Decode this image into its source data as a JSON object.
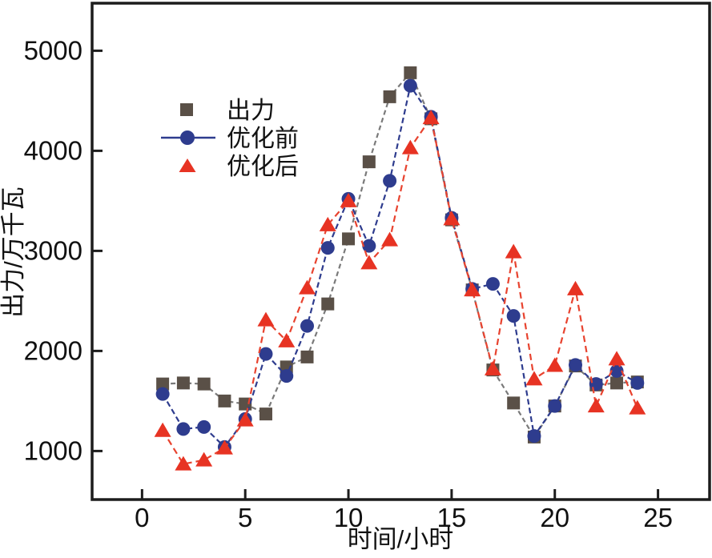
{
  "figure": {
    "background": "#ffffff",
    "frame_color": "#1c1c1c"
  },
  "chart_data": {
    "type": "line",
    "title": "",
    "xlabel": "时间/小时",
    "ylabel": "出力/万千瓦",
    "x": [
      1,
      2,
      3,
      4,
      5,
      6,
      7,
      8,
      9,
      10,
      11,
      12,
      13,
      14,
      15,
      16,
      17,
      18,
      19,
      20,
      21,
      22,
      23,
      24
    ],
    "xticks": [
      0,
      5,
      10,
      15,
      20,
      25
    ],
    "yticks": [
      1000,
      2000,
      3000,
      4000,
      5000
    ],
    "xlim": [
      -2.42,
      27.5
    ],
    "ylim": [
      515,
      5475
    ],
    "grid": false,
    "legend_position": "upper-left-inside",
    "series": [
      {
        "name": "出力",
        "marker": "square",
        "color": "#5a5047",
        "line_color": "#7a7a7a",
        "line_dash": "6 4",
        "values": [
          1670,
          1680,
          1670,
          1500,
          1470,
          1370,
          1840,
          1940,
          2470,
          3120,
          3890,
          4540,
          4780,
          4320,
          3310,
          2610,
          1810,
          1480,
          1140,
          1450,
          1850,
          1660,
          1680,
          1690
        ]
      },
      {
        "name": "优化前",
        "marker": "circle",
        "color": "#2e3c8e",
        "line_color": "#2e3c8e",
        "line_dash": "7 4",
        "values": [
          1570,
          1220,
          1240,
          1040,
          1320,
          1970,
          1750,
          2250,
          3030,
          3520,
          3050,
          3700,
          4650,
          4340,
          3330,
          2620,
          2670,
          2350,
          1150,
          1450,
          1860,
          1670,
          1800,
          1680
        ]
      },
      {
        "name": "优化后",
        "marker": "triangle",
        "color": "#e73323",
        "line_color": "#e8432f",
        "line_dash": "8 5",
        "values": [
          1205,
          870,
          910,
          1030,
          1310,
          2310,
          2100,
          2630,
          3260,
          3500,
          2880,
          3110,
          4030,
          4330,
          3320,
          2610,
          1820,
          2990,
          1720,
          1855,
          2620,
          1450,
          1920,
          1430
        ]
      }
    ]
  }
}
